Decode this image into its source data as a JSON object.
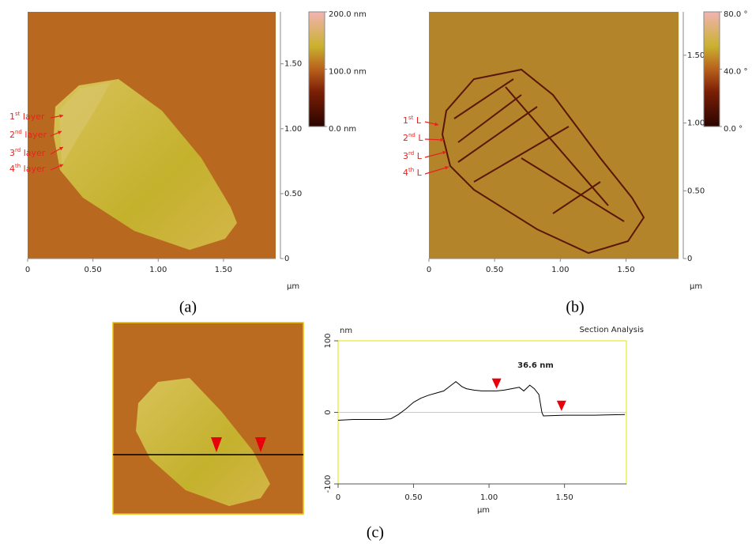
{
  "panel_labels": [
    "(a)",
    "(b)",
    "(c)"
  ],
  "chart_data": [
    {
      "type": "image",
      "x_label": "μm",
      "xlim": [
        0,
        1.9
      ],
      "ylim": [
        0,
        1.9
      ],
      "xticks": [
        0,
        {
          "value": 0.5,
          "label": "0.50"
        },
        {
          "value": 1,
          "label": "1.00"
        },
        {
          "value": 1.5,
          "label": "1.50"
        }
      ],
      "yticks": [
        0,
        {
          "value": 0.5,
          "label": "0.50"
        },
        {
          "value": 1,
          "label": "1.00"
        },
        {
          "value": 1.5,
          "label": "1.50"
        }
      ],
      "colorbar": {
        "lim": [
          0,
          200
        ],
        "ticks": [
          {
            "value": 200,
            "label": "200.0 nm"
          },
          {
            "value": 100,
            "label": "100.0 nm"
          },
          {
            "value": 0,
            "label": "0.0 nm"
          }
        ]
      },
      "annotations": [
        {
          "num": "1",
          "sup": "st",
          "word": " layer"
        },
        {
          "num": "2",
          "sup": "nd",
          "word": " layer"
        },
        {
          "num": "3",
          "sup": "rd",
          "word": " layer"
        },
        {
          "num": "4",
          "sup": "th",
          "word": " layer"
        }
      ]
    },
    {
      "type": "image",
      "x_label": "μm",
      "xlim": [
        0,
        1.9
      ],
      "ylim": [
        0,
        1.82
      ],
      "xticks": [
        0,
        {
          "value": 0.5,
          "label": "0.50"
        },
        {
          "value": 1,
          "label": "1.00"
        },
        {
          "value": 1.5,
          "label": "1.50"
        }
      ],
      "yticks": [
        0,
        {
          "value": 0.5,
          "label": "0.50"
        },
        {
          "value": 1,
          "label": "1.00"
        },
        {
          "value": 1.5,
          "label": "1.50"
        }
      ],
      "colorbar": {
        "lim": [
          0,
          80
        ],
        "ticks": [
          {
            "value": 80,
            "label": "80.0 °"
          },
          {
            "value": 40,
            "label": "40.0 °"
          },
          {
            "value": 0,
            "label": "0.0 °"
          }
        ]
      },
      "annotations": [
        {
          "num": "1",
          "sup": "st",
          "word": " L"
        },
        {
          "num": "2",
          "sup": "nd",
          "word": " L"
        },
        {
          "num": "3",
          "sup": "rd",
          "word": " L"
        },
        {
          "num": "4",
          "sup": "th",
          "word": " L"
        }
      ]
    },
    {
      "type": "line",
      "title": "Section Analysis",
      "x_label": "μm",
      "y_label": "nm",
      "annotation": "36.6 nm",
      "color": "#000000",
      "frame_color": "#e6e600",
      "grid": true,
      "xlim": [
        0,
        1.91
      ],
      "ylim": [
        -100,
        100
      ],
      "xticks": [
        0,
        {
          "value": 0.5,
          "label": "0.50"
        },
        {
          "value": 1,
          "label": "1.00"
        },
        {
          "value": 1.5,
          "label": "1.50"
        }
      ],
      "yticks": [
        -100,
        0,
        100
      ],
      "x": [
        0,
        0.1,
        0.2,
        0.3,
        0.35,
        0.4,
        0.45,
        0.5,
        0.55,
        0.6,
        0.65,
        0.7,
        0.75,
        0.78,
        0.82,
        0.85,
        0.9,
        0.95,
        1.0,
        1.05,
        1.1,
        1.15,
        1.2,
        1.23,
        1.27,
        1.3,
        1.33,
        1.35,
        1.36,
        1.5,
        1.7,
        1.9
      ],
      "y": [
        -11,
        -10,
        -10,
        -10,
        -9,
        -3,
        5,
        14,
        20,
        24,
        27,
        30,
        38,
        43,
        36,
        33,
        31,
        30,
        30,
        30,
        31,
        33,
        35,
        30,
        38,
        33,
        25,
        0,
        -5,
        -4,
        -4,
        -3
      ],
      "markers": {
        "color": "#e8000b",
        "x": [
          1.05,
          1.48
        ],
        "y": [
          33,
          2
        ]
      }
    }
  ]
}
